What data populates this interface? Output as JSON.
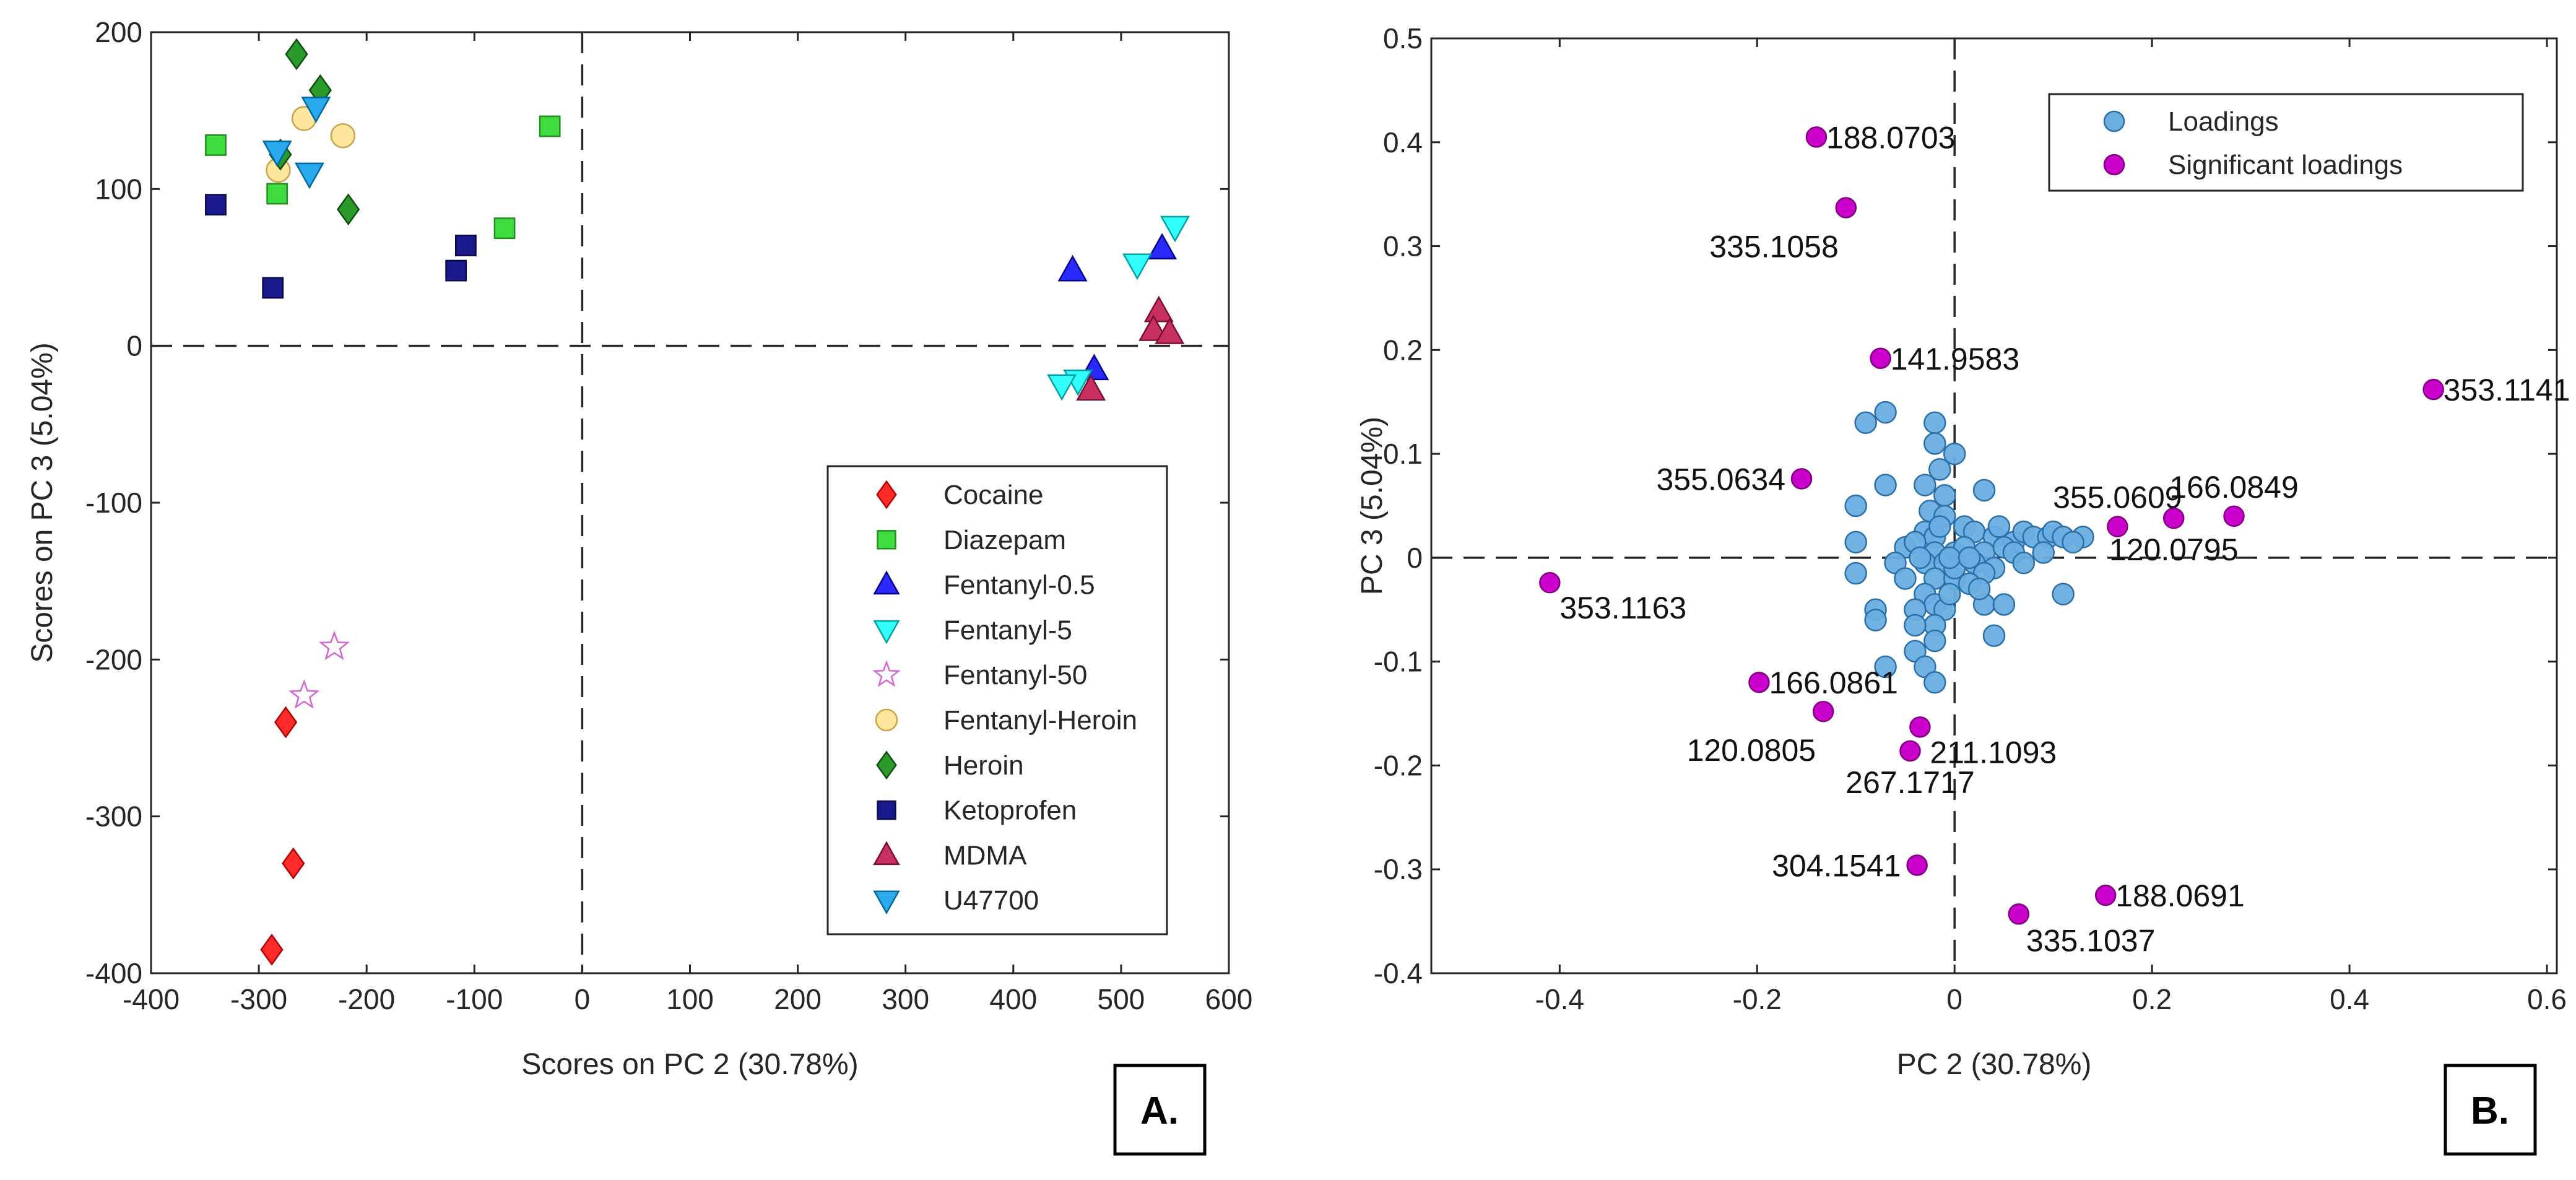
{
  "chart_data": [
    {
      "id": "A",
      "type": "scatter",
      "panel_label": "A.",
      "xlabel": "Scores on PC 2 (30.78%)",
      "ylabel": "Scores on PC 3 (5.04%)",
      "xlim": [
        -400,
        600
      ],
      "ylim": [
        -400,
        200
      ],
      "xticks": [
        -400,
        -300,
        -200,
        -100,
        0,
        100,
        200,
        300,
        400,
        500,
        600
      ],
      "yticks": [
        -400,
        -300,
        -200,
        -100,
        0,
        100,
        200
      ],
      "legend_position": "lower-right",
      "series": [
        {
          "name": "Cocaine",
          "marker": "diamond",
          "color": "#ff2a2a",
          "edge": "#b00000",
          "points": [
            [
              -275,
              -240
            ],
            [
              -268,
              -330
            ],
            [
              -288,
              -385
            ]
          ]
        },
        {
          "name": "Diazepam",
          "marker": "square",
          "color": "#3fdc3f",
          "edge": "#1f8f1f",
          "points": [
            [
              -340,
              128
            ],
            [
              -283,
              97
            ],
            [
              -30,
              140
            ],
            [
              -72,
              75
            ]
          ]
        },
        {
          "name": "Fentanyl-0.5",
          "marker": "triangle-up",
          "color": "#2a2aff",
          "edge": "#00008f",
          "points": [
            [
              455,
              48
            ],
            [
              538,
              62
            ],
            [
              475,
              -15
            ]
          ]
        },
        {
          "name": "Fentanyl-5",
          "marker": "triangle-down",
          "color": "#33ffff",
          "edge": "#00a0a0",
          "points": [
            [
              550,
              76
            ],
            [
              515,
              52
            ],
            [
              460,
              -22
            ],
            [
              445,
              -25
            ]
          ]
        },
        {
          "name": "Fentanyl-50",
          "marker": "star",
          "color": "#ffffff",
          "edge": "#d266d2",
          "points": [
            [
              -230,
              -192
            ],
            [
              -258,
              -223
            ]
          ]
        },
        {
          "name": "Fentanyl-Heroin",
          "marker": "circle",
          "color": "#ffe7a0",
          "edge": "#c9a24a",
          "points": [
            [
              -258,
              145
            ],
            [
              -282,
              112
            ],
            [
              -222,
              134
            ]
          ]
        },
        {
          "name": "Heroin",
          "marker": "diamond",
          "color": "#2a9a2a",
          "edge": "#0d4d0d",
          "points": [
            [
              -265,
              186
            ],
            [
              -243,
              163
            ],
            [
              -280,
              122
            ],
            [
              -217,
              87
            ]
          ]
        },
        {
          "name": "Ketoprofen",
          "marker": "square",
          "color": "#1a1a8c",
          "edge": "#0a0a4d",
          "points": [
            [
              -340,
              90
            ],
            [
              -287,
              37
            ],
            [
              -108,
              64
            ],
            [
              -117,
              48
            ]
          ]
        },
        {
          "name": "MDMA",
          "marker": "triangle-up",
          "color": "#c83060",
          "edge": "#7a0f30",
          "points": [
            [
              535,
              22
            ],
            [
              530,
              10
            ],
            [
              545,
              8
            ],
            [
              472,
              -28
            ]
          ]
        },
        {
          "name": "U47700",
          "marker": "triangle-down",
          "color": "#2aaaee",
          "edge": "#0066a0",
          "points": [
            [
              -283,
              124
            ],
            [
              -247,
              152
            ],
            [
              -253,
              110
            ]
          ]
        }
      ]
    },
    {
      "id": "B",
      "type": "scatter",
      "panel_label": "B.",
      "xlabel": "PC 2 (30.78%)",
      "ylabel": "PC 3 (5.04%)",
      "xlim": [
        -0.53,
        0.61
      ],
      "ylim": [
        -0.4,
        0.5
      ],
      "xticks": [
        -0.4,
        -0.2,
        0,
        0.2,
        0.4,
        0.6
      ],
      "xtick_labels": [
        "-0.4",
        "-0.2",
        "0",
        "0.2",
        "0.4",
        "0.6"
      ],
      "yticks": [
        -0.4,
        -0.3,
        -0.2,
        -0.1,
        0,
        0.1,
        0.2,
        0.3,
        0.4,
        0.5
      ],
      "ytick_labels": [
        "-0.4",
        "-0.3",
        "-0.2",
        "-0.1",
        "0",
        "0.1",
        "0.2",
        "0.3",
        "0.4",
        "0.5"
      ],
      "legend_position": "top-right",
      "legend": [
        {
          "name": "Loadings",
          "color": "#6aaee0",
          "edge": "#2a6fa8"
        },
        {
          "name": "Significant loadings",
          "color": "#cc00cc",
          "edge": "#800080"
        }
      ],
      "loadings": [
        [
          -0.07,
          0.14
        ],
        [
          -0.09,
          0.13
        ],
        [
          -0.02,
          0.13
        ],
        [
          -0.1,
          0.05
        ],
        [
          -0.07,
          0.07
        ],
        [
          0.0,
          0.1
        ],
        [
          -0.02,
          0.11
        ],
        [
          -0.015,
          0.085
        ],
        [
          0.03,
          0.065
        ],
        [
          -0.03,
          0.07
        ],
        [
          -0.01,
          0.06
        ],
        [
          -0.025,
          0.045
        ],
        [
          -0.01,
          0.04
        ],
        [
          -0.03,
          0.025
        ],
        [
          -0.02,
          0.02
        ],
        [
          0.01,
          0.03
        ],
        [
          0.02,
          0.025
        ],
        [
          0.04,
          0.02
        ],
        [
          0.06,
          0.015
        ],
        [
          0.07,
          0.025
        ],
        [
          0.08,
          0.02
        ],
        [
          0.095,
          0.02
        ],
        [
          0.1,
          0.025
        ],
        [
          0.11,
          0.02
        ],
        [
          0.13,
          0.02
        ],
        [
          0.12,
          0.015
        ],
        [
          -0.1,
          0.015
        ],
        [
          -0.05,
          0.01
        ],
        [
          -0.04,
          0.015
        ],
        [
          -0.02,
          0.005
        ],
        [
          0.0,
          0.005
        ],
        [
          0.01,
          0.01
        ],
        [
          0.03,
          0.005
        ],
        [
          0.05,
          0.01
        ],
        [
          0.06,
          0.005
        ],
        [
          0.09,
          0.005
        ],
        [
          -0.1,
          -0.015
        ],
        [
          -0.06,
          -0.005
        ],
        [
          -0.03,
          -0.005
        ],
        [
          -0.01,
          -0.005
        ],
        [
          0.02,
          -0.005
        ],
        [
          0.04,
          -0.01
        ],
        [
          0.07,
          -0.005
        ],
        [
          -0.05,
          -0.02
        ],
        [
          -0.02,
          -0.02
        ],
        [
          0.0,
          -0.02
        ],
        [
          0.03,
          -0.015
        ],
        [
          -0.03,
          -0.035
        ],
        [
          -0.02,
          -0.045
        ],
        [
          -0.01,
          -0.05
        ],
        [
          0.11,
          -0.035
        ],
        [
          -0.08,
          -0.05
        ],
        [
          -0.04,
          -0.05
        ],
        [
          0.03,
          -0.045
        ],
        [
          -0.08,
          -0.06
        ],
        [
          -0.02,
          -0.065
        ],
        [
          -0.04,
          -0.065
        ],
        [
          0.05,
          -0.045
        ],
        [
          0.04,
          -0.075
        ],
        [
          -0.02,
          -0.08
        ],
        [
          -0.04,
          -0.09
        ],
        [
          -0.07,
          -0.105
        ],
        [
          -0.03,
          -0.105
        ],
        [
          -0.02,
          -0.12
        ],
        [
          -0.005,
          -0.035
        ],
        [
          0.015,
          -0.025
        ],
        [
          -0.015,
          0.03
        ],
        [
          0.0,
          -0.01
        ],
        [
          -0.035,
          0.0
        ],
        [
          0.045,
          0.03
        ],
        [
          0.025,
          -0.03
        ],
        [
          -0.005,
          0.0
        ],
        [
          0.015,
          0.0
        ]
      ],
      "significant": [
        {
          "label": "188.0703",
          "x": -0.14,
          "y": 0.405,
          "pos": "right"
        },
        {
          "label": "335.1058",
          "x": -0.11,
          "y": 0.337,
          "pos": "below-left"
        },
        {
          "label": "141.9583",
          "x": -0.075,
          "y": 0.192,
          "pos": "right"
        },
        {
          "label": "353.1141",
          "x": 0.485,
          "y": 0.162,
          "pos": "right"
        },
        {
          "label": "355.0634",
          "x": -0.155,
          "y": 0.076,
          "pos": "left"
        },
        {
          "label": "355.0609",
          "x": 0.165,
          "y": 0.03,
          "pos": "above"
        },
        {
          "label": "166.0849",
          "x": 0.283,
          "y": 0.04,
          "pos": "above"
        },
        {
          "label": "120.0795",
          "x": 0.222,
          "y": 0.038,
          "pos": "below"
        },
        {
          "label": "353.1163",
          "x": -0.41,
          "y": -0.024,
          "pos": "right-below"
        },
        {
          "label": "166.0861",
          "x": -0.198,
          "y": -0.12,
          "pos": "right"
        },
        {
          "label": "120.0805",
          "x": -0.133,
          "y": -0.148,
          "pos": "below-left"
        },
        {
          "label": "211.1093",
          "x": -0.035,
          "y": -0.163,
          "pos": "right-below"
        },
        {
          "label": "267.1717",
          "x": -0.045,
          "y": -0.186,
          "pos": "below"
        },
        {
          "label": "304.1541",
          "x": -0.038,
          "y": -0.296,
          "pos": "left"
        },
        {
          "label": "188.0691",
          "x": 0.153,
          "y": -0.325,
          "pos": "right"
        },
        {
          "label": "335.1037",
          "x": 0.065,
          "y": -0.343,
          "pos": "below-right"
        }
      ]
    }
  ]
}
